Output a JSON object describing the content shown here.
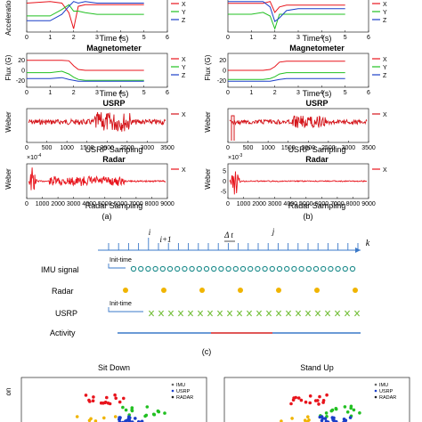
{
  "panels": {
    "a": {
      "label": "(a)",
      "accelerometer": {
        "ylabel": "Acceleration",
        "xlabel": "Time (s)",
        "xticks": [
          "0",
          "1",
          "2",
          "3",
          "4",
          "5",
          "6"
        ],
        "legend": [
          "X",
          "Y",
          "Z"
        ]
      },
      "magnetometer": {
        "title": "Magnetometer",
        "ylabel": "Flux (G)",
        "xlabel": "Time (s)",
        "yticks": [
          "-20",
          "0",
          "20"
        ],
        "xticks": [
          "0",
          "1",
          "2",
          "3",
          "4",
          "5",
          "6"
        ],
        "legend": [
          "X",
          "Y",
          "Z"
        ]
      },
      "usrp": {
        "title": "USRP",
        "ylabel": "Weber",
        "xlabel": "USRP Sampling",
        "xticks": [
          "0",
          "500",
          "1000",
          "1500",
          "2000",
          "2500",
          "3000",
          "3500"
        ],
        "legend": [
          "X"
        ]
      },
      "radar": {
        "title": "Radar",
        "ylabel": "Weber",
        "xlabel": "Radar Sampling",
        "exponent": "×10",
        "exponent_power": "-4",
        "xticks": [
          "0",
          "1000",
          "2000",
          "3000",
          "4000",
          "5000",
          "6000",
          "7000",
          "8000",
          "9000"
        ],
        "legend": [
          "X"
        ]
      }
    },
    "b": {
      "label": "(b)",
      "accelerometer": {
        "xlabel": "Time (s)",
        "xticks": [
          "0",
          "1",
          "2",
          "3",
          "4",
          "5",
          "6"
        ],
        "legend": [
          "X",
          "Y",
          "Z"
        ]
      },
      "magnetometer": {
        "title": "Magnetometer",
        "ylabel": "Flux (G)",
        "xlabel": "Time (s)",
        "yticks": [
          "-20",
          "0",
          "20"
        ],
        "xticks": [
          "0",
          "1",
          "2",
          "3",
          "4",
          "5",
          "6"
        ],
        "legend": [
          "X",
          "Y",
          "Z"
        ]
      },
      "usrp": {
        "title": "USRP",
        "ylabel": "Weber",
        "xlabel": "USRP Sampling",
        "xticks": [
          "0",
          "500",
          "1000",
          "1500",
          "2000",
          "2500",
          "3000",
          "3500"
        ],
        "legend": [
          "X"
        ]
      },
      "radar": {
        "title": "Radar",
        "ylabel": "Weber",
        "xlabel": "Radar Sampling",
        "exponent": "×10",
        "exponent_power": "-3",
        "yticks": [
          "5",
          "0",
          "-5"
        ],
        "xticks": [
          "0",
          "1000",
          "2000",
          "3000",
          "4000",
          "5000",
          "6000",
          "7000",
          "8000",
          "9000"
        ],
        "legend": [
          "X"
        ]
      }
    },
    "c": {
      "label": "(c)",
      "timeline": {
        "labels": [
          "i",
          "i+1",
          "Δ t",
          "j",
          "k"
        ]
      },
      "rows": [
        {
          "name": "IMU signal",
          "color": "#1a8a8a",
          "init": "Init-time"
        },
        {
          "name": "Radar",
          "color": "#f0b400",
          "init": ""
        },
        {
          "name": "USRP",
          "color": "#7ac142",
          "init": "Init-time"
        },
        {
          "name": "Activity",
          "color": "#d62020",
          "init": ""
        }
      ]
    },
    "d": {
      "left_title": "Sit Down",
      "right_title": "Stand Up",
      "ylabel_fragment": "on",
      "legend": [
        "IMU",
        "USRP",
        "RADAR"
      ]
    }
  },
  "colors": {
    "x": "#e8141c",
    "y": "#22c022",
    "z": "#1a3ec8",
    "usrp_line": "#d4141a",
    "imu_circle": "#1a8a8a",
    "radar_dot": "#f0b400",
    "usrp_cross": "#7ac142",
    "timeline": "#3a78c8",
    "activity_red": "#d62020",
    "activity_blue": "#3a78c8"
  },
  "chart_data": [
    {
      "type": "line",
      "title": "",
      "xlabel": "Time (s)",
      "ylabel": "Acceleration",
      "xlim": [
        0,
        6
      ],
      "legend_position": "right",
      "series": [
        {
          "name": "X",
          "x": [
            0,
            1,
            1.5,
            1.8,
            2.0,
            2.2,
            2.5,
            3,
            4,
            5
          ],
          "values": [
            0.8,
            0.9,
            0.8,
            0.2,
            -0.8,
            0.6,
            0.7,
            0.7,
            0.7,
            0.7
          ]
        },
        {
          "name": "Y",
          "x": [
            0,
            1,
            1.5,
            1.8,
            2.0,
            2.2,
            2.5,
            3,
            4,
            5
          ],
          "values": [
            0.0,
            0.0,
            0.4,
            0.7,
            0.3,
            0.3,
            0.2,
            0.1,
            0.1,
            0.1
          ]
        },
        {
          "name": "Z",
          "x": [
            0,
            1,
            1.5,
            1.8,
            2.0,
            2.2,
            2.5,
            3,
            4,
            5
          ],
          "values": [
            -0.3,
            -0.3,
            0.1,
            0.6,
            0.9,
            0.8,
            0.9,
            0.8,
            0.8,
            0.8
          ]
        }
      ]
    },
    {
      "type": "line",
      "title": "Magnetometer",
      "xlabel": "Time (s)",
      "ylabel": "Flux (G)",
      "xlim": [
        0,
        6
      ],
      "ylim": [
        -30,
        30
      ],
      "legend_position": "right",
      "series": [
        {
          "name": "X",
          "x": [
            0,
            1,
            1.5,
            1.8,
            2.0,
            2.2,
            2.5,
            3,
            4,
            5
          ],
          "values": [
            22,
            22,
            22,
            21,
            10,
            2,
            0,
            0,
            0,
            0
          ]
        },
        {
          "name": "Y",
          "x": [
            0,
            1,
            1.5,
            1.8,
            2.0,
            2.2,
            2.5,
            3,
            4,
            5
          ],
          "values": [
            -5,
            -5,
            -2,
            -8,
            -15,
            -20,
            -22,
            -22,
            -22,
            -22
          ]
        },
        {
          "name": "Z",
          "x": [
            0,
            1,
            1.5,
            1.8,
            2.0,
            2.2,
            2.5,
            3,
            4,
            5
          ],
          "values": [
            -18,
            -18,
            -16,
            -20,
            -22,
            -24,
            -24,
            -24,
            -24,
            -24
          ]
        }
      ]
    },
    {
      "type": "line",
      "title": "USRP",
      "xlabel": "USRP Sampling",
      "ylabel": "Weber",
      "xlim": [
        0,
        3500
      ],
      "legend_position": "right",
      "series": [
        {
          "name": "X",
          "note_seed": 1
        }
      ]
    },
    {
      "type": "line",
      "title": "Radar",
      "xlabel": "Radar Sampling",
      "ylabel": "Weber",
      "xlim": [
        0,
        9000
      ],
      "legend_position": "right",
      "series": [
        {
          "name": "X"
        }
      ]
    },
    {
      "type": "line",
      "title": "",
      "xlabel": "Time (s)",
      "ylabel": "",
      "xlim": [
        0,
        6
      ],
      "legend_position": "right",
      "series": [
        {
          "name": "X",
          "x": [
            0,
            1,
            1.5,
            1.8,
            2.0,
            2.2,
            2.5,
            3,
            4,
            5
          ],
          "values": [
            0.8,
            0.8,
            0.8,
            0.9,
            0.3,
            0.6,
            0.7,
            0.7,
            0.7,
            0.7
          ]
        },
        {
          "name": "Y",
          "x": [
            0,
            1,
            1.5,
            1.8,
            2.0,
            2.2,
            2.5,
            3,
            4,
            5
          ],
          "values": [
            0.2,
            0.2,
            0.3,
            0.1,
            -0.6,
            0.2,
            0.2,
            0.2,
            0.2,
            0.2
          ]
        },
        {
          "name": "Z",
          "x": [
            0,
            1,
            1.5,
            1.8,
            2.0,
            2.2,
            2.5,
            3,
            4,
            5
          ],
          "values": [
            0.9,
            0.9,
            0.9,
            0.6,
            -0.2,
            0.0,
            0.4,
            0.5,
            0.5,
            0.5
          ]
        }
      ]
    },
    {
      "type": "line",
      "title": "Magnetometer",
      "xlabel": "Time (s)",
      "ylabel": "Flux (G)",
      "xlim": [
        0,
        6
      ],
      "ylim": [
        -30,
        30
      ],
      "legend_position": "right",
      "series": [
        {
          "name": "X",
          "x": [
            0,
            1,
            1.5,
            1.8,
            2.0,
            2.2,
            2.5,
            3,
            4,
            5
          ],
          "values": [
            0,
            0,
            0,
            2,
            8,
            18,
            20,
            20,
            20,
            20
          ]
        },
        {
          "name": "Y",
          "x": [
            0,
            1,
            1.5,
            1.8,
            2.0,
            2.2,
            2.5,
            3,
            4,
            5
          ],
          "values": [
            -20,
            -20,
            -20,
            -18,
            -14,
            -8,
            -5,
            -5,
            -5,
            -5
          ]
        },
        {
          "name": "Z",
          "x": [
            0,
            1,
            1.5,
            1.8,
            2.0,
            2.2,
            2.5,
            3,
            4,
            5
          ],
          "values": [
            -24,
            -24,
            -24,
            -24,
            -22,
            -20,
            -18,
            -18,
            -18,
            -18
          ]
        }
      ]
    },
    {
      "type": "line",
      "title": "USRP",
      "xlabel": "USRP Sampling",
      "ylabel": "Weber",
      "xlim": [
        0,
        3500
      ],
      "legend_position": "right",
      "series": [
        {
          "name": "X"
        }
      ]
    },
    {
      "type": "line",
      "title": "Radar",
      "xlabel": "Radar Sampling",
      "ylabel": "Weber",
      "xlim": [
        0,
        9000
      ],
      "legend_position": "right",
      "series": [
        {
          "name": "X"
        }
      ]
    }
  ]
}
